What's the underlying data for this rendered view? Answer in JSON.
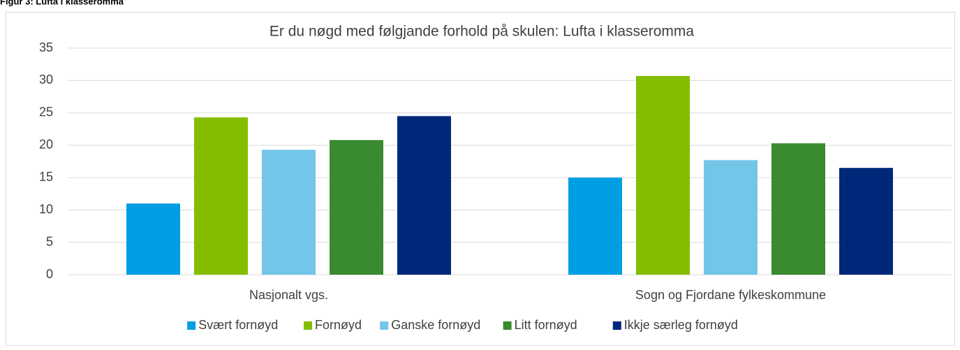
{
  "figure_caption": "Figur 3: Lufta i klasseromma",
  "chart_data": {
    "type": "bar",
    "title": "Er du nøgd med følgjande forhold på skulen: Lufta i klasseromma",
    "categories": [
      "Nasjonalt vgs.",
      "Sogn og Fjordane fylkeskommune"
    ],
    "series": [
      {
        "name": "Svært fornøyd",
        "color": "#009fe3",
        "values": [
          11.0,
          15.0
        ]
      },
      {
        "name": "Fornøyd",
        "color": "#84bd00",
        "values": [
          24.3,
          30.7
        ]
      },
      {
        "name": "Ganske fornøyd",
        "color": "#74c6e8",
        "values": [
          19.3,
          17.7
        ]
      },
      {
        "name": "Litt fornøyd",
        "color": "#3a8a2f",
        "values": [
          20.8,
          20.3
        ]
      },
      {
        "name": "Ikkje særleg fornøyd",
        "color": "#00287a",
        "values": [
          24.5,
          16.5
        ]
      }
    ],
    "ylim": [
      0,
      35
    ],
    "yticks": [
      0,
      5,
      10,
      15,
      20,
      25,
      30,
      35
    ],
    "grid": true,
    "legend": "bottom"
  }
}
